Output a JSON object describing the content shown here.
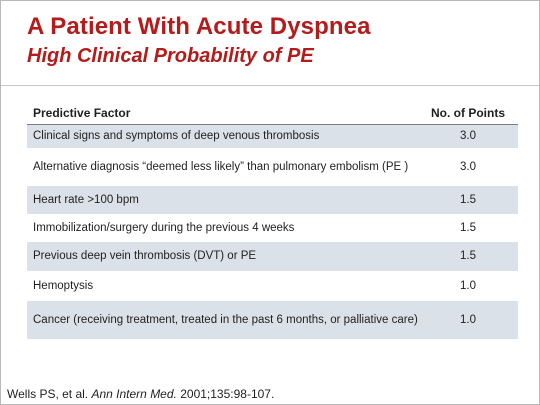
{
  "title": "A Patient With Acute Dyspnea",
  "subtitle": "High Clinical Probability of PE",
  "table": {
    "headers": {
      "factor": "Predictive Factor",
      "points": "No. of Points"
    },
    "rows": [
      {
        "factor": "Clinical signs and symptoms of deep venous thrombosis",
        "points": "3.0"
      },
      {
        "factor": "Alternative diagnosis “deemed less likely” than pulmonary embolism (PE )",
        "points": "3.0"
      },
      {
        "factor": "Heart rate >100 bpm",
        "points": "1.5"
      },
      {
        "factor": "Immobilization/surgery during the previous 4 weeks",
        "points": "1.5"
      },
      {
        "factor": "Previous deep vein thrombosis (DVT) or PE",
        "points": "1.5"
      },
      {
        "factor": "Hemoptysis",
        "points": "1.0"
      },
      {
        "factor": "Cancer (receiving treatment, treated in the past 6 months, or palliative care)",
        "points": "1.0"
      }
    ]
  },
  "citation": {
    "authors": "Wells PS, et al.",
    "journal": "Ann Intern Med.",
    "ref": "2001;135:98-107."
  }
}
